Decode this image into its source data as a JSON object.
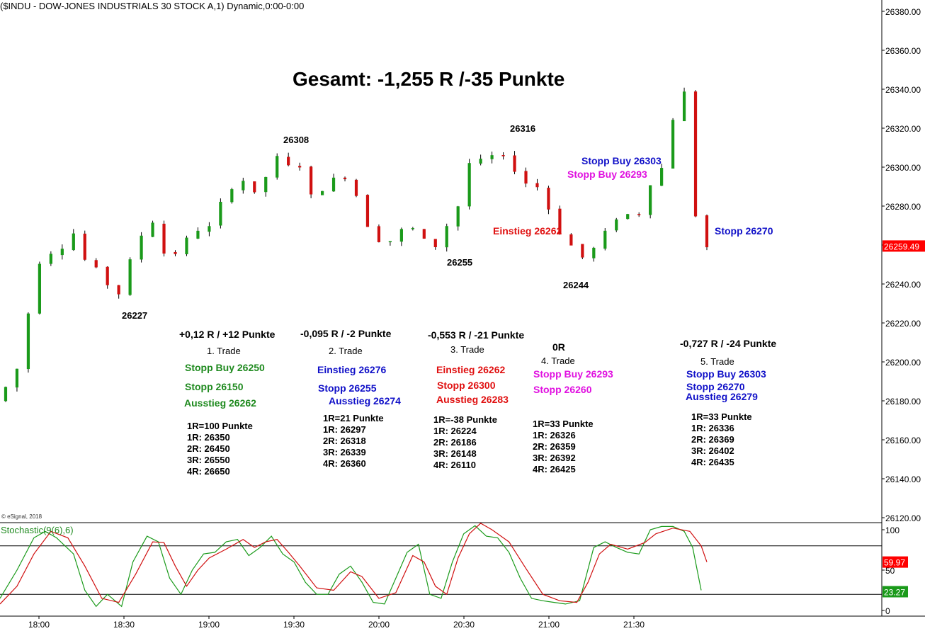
{
  "header": {
    "symbol": "($INDU - DOW-JONES INDUSTRIALS 30 STOCK A,1) Dynamic,0:00-0:00",
    "title": "Gesamt: -1,255 R /-35 Punkte",
    "copyright": "© eSignal, 2018"
  },
  "price_axis": {
    "ticks": [
      "26380.00",
      "26360.00",
      "26340.00",
      "26320.00",
      "26300.00",
      "26280.00",
      "26260.00",
      "26240.00",
      "26220.00",
      "26200.00",
      "26180.00",
      "26160.00",
      "26140.00",
      "26120.00"
    ],
    "last_price": "26259.49",
    "last_price_color": "#ff0000"
  },
  "stoch_axis": {
    "ticks": [
      "100",
      "50",
      "0"
    ],
    "label": "Stochastic(9(6),6)",
    "red_value": "59.97",
    "green_value": "23.27",
    "red_color": "#ff0000",
    "green_color": "#1a9a1a"
  },
  "time_axis": [
    "18:00",
    "18:30",
    "19:00",
    "19:30",
    "20:00",
    "20:30",
    "21:00",
    "21:30"
  ],
  "price_labels": {
    "p26227": "26227",
    "p26308": "26308",
    "p26316": "26316",
    "p26255": "26255",
    "p26244": "26244"
  },
  "chart_annotations": {
    "stopp_buy_26303": "Stopp Buy 26303",
    "stopp_buy_26293": "Stopp Buy 26293",
    "einstieg_26262": "Einstieg 26262",
    "stopp_26270": "Stopp 26270"
  },
  "trades": [
    {
      "result": "+0,12 R / +12 Punkte",
      "name": "1. Trade",
      "lines": [
        "Stopp Buy 26250",
        "Stopp 26150",
        "Ausstieg 26262"
      ],
      "r_levels": [
        "1R=100 Punkte",
        "1R: 26350",
        "2R: 26450",
        "3R: 26550",
        "4R: 26650"
      ]
    },
    {
      "result": "-0,095 R / -2 Punkte",
      "name": "2. Trade",
      "lines": [
        "Einstieg 26276",
        "Stopp 26255",
        "Ausstieg 26274"
      ],
      "r_levels": [
        "1R=21 Punkte",
        "1R: 26297",
        "2R: 26318",
        "3R: 26339",
        "4R: 26360"
      ]
    },
    {
      "result": "-0,553 R / -21 Punkte",
      "name": "3. Trade",
      "lines": [
        "Einstieg 26262",
        "Stopp 26300",
        "Ausstieg 26283"
      ],
      "r_levels": [
        "1R=-38 Punkte",
        "1R: 26224",
        "2R: 26186",
        "3R: 26148",
        "4R: 26110"
      ]
    },
    {
      "result": "0R",
      "name": "4. Trade",
      "lines": [
        "Stopp Buy 26293",
        "Stopp 26260"
      ],
      "r_levels": [
        "1R=33 Punkte",
        "1R: 26326",
        "2R: 26359",
        "3R: 26392",
        "4R: 26425"
      ]
    },
    {
      "result": "-0,727 R / -24 Punkte",
      "name": "5. Trade",
      "lines": [
        "Stopp Buy 26303",
        "Stopp 26270",
        "Ausstieg 26279"
      ],
      "r_levels": [
        "1R=33 Punkte",
        "1R: 26336",
        "2R: 26369",
        "3R: 26402",
        "4R: 26435"
      ]
    }
  ],
  "chart_data": [
    {
      "type": "candlestick",
      "title": "Gesamt: -1,255 R /-35 Punkte",
      "x_time_ticks": [
        "18:00",
        "18:30",
        "19:00",
        "19:30",
        "20:00",
        "20:30",
        "21:00",
        "21:30"
      ],
      "ylim": [
        26120,
        26380
      ],
      "up_color": "#1a9a1a",
      "down_color": "#d01010",
      "close_path": [
        [
          0,
          26180
        ],
        [
          7,
          26192
        ],
        [
          10,
          26205
        ],
        [
          13,
          26235
        ],
        [
          17,
          26257
        ],
        [
          22,
          26256
        ],
        [
          28,
          26266
        ],
        [
          33,
          26249
        ],
        [
          38,
          26246
        ],
        [
          43,
          26231
        ],
        [
          47,
          26248
        ],
        [
          52,
          26265
        ],
        [
          57,
          26274
        ],
        [
          61,
          26250
        ],
        [
          66,
          26260
        ],
        [
          72,
          26268
        ],
        [
          77,
          26269
        ],
        [
          81,
          26285
        ],
        [
          87,
          26295
        ],
        [
          93,
          26284
        ],
        [
          99,
          26306
        ],
        [
          103,
          26300
        ],
        [
          108,
          26301
        ],
        [
          112,
          26285
        ],
        [
          117,
          26290
        ],
        [
          123,
          26297
        ],
        [
          127,
          26290
        ],
        [
          131,
          26273
        ],
        [
          135,
          26263
        ],
        [
          141,
          26262
        ],
        [
          146,
          26271
        ],
        [
          151,
          26264
        ],
        [
          155,
          26257
        ],
        [
          160,
          26270
        ],
        [
          164,
          26280
        ],
        [
          168,
          26302
        ],
        [
          173,
          26303
        ],
        [
          178,
          26307
        ],
        [
          182,
          26302
        ],
        [
          186,
          26296
        ],
        [
          189,
          26290
        ],
        [
          193,
          26290
        ],
        [
          197,
          26275
        ],
        [
          201,
          26264
        ],
        [
          206,
          26257
        ],
        [
          209,
          26252
        ],
        [
          214,
          26262
        ],
        [
          218,
          26270
        ],
        [
          222,
          26278
        ],
        [
          227,
          26272
        ],
        [
          231,
          26290
        ],
        [
          235,
          26298
        ],
        [
          238,
          26302
        ],
        [
          240,
          26325
        ],
        [
          244,
          26338
        ],
        [
          245,
          26340
        ],
        [
          246,
          26300
        ],
        [
          247,
          26285
        ],
        [
          249,
          26266
        ],
        [
          250,
          26259
        ]
      ]
    },
    {
      "type": "line",
      "title": "Stochastic(9(6),6)",
      "ylim": [
        0,
        100
      ],
      "series": [
        {
          "color": "#1a9a1a",
          "points": [
            [
              0,
              15
            ],
            [
              6,
              50
            ],
            [
              12,
              90
            ],
            [
              16,
              98
            ],
            [
              20,
              90
            ],
            [
              26,
              70
            ],
            [
              30,
              25
            ],
            [
              34,
              5
            ],
            [
              38,
              20
            ],
            [
              43,
              5
            ],
            [
              47,
              60
            ],
            [
              52,
              92
            ],
            [
              56,
              85
            ],
            [
              60,
              40
            ],
            [
              64,
              20
            ],
            [
              68,
              50
            ],
            [
              72,
              70
            ],
            [
              76,
              72
            ],
            [
              80,
              85
            ],
            [
              84,
              88
            ],
            [
              88,
              68
            ],
            [
              92,
              78
            ],
            [
              96,
              92
            ],
            [
              100,
              70
            ],
            [
              104,
              60
            ],
            [
              108,
              35
            ],
            [
              112,
              20
            ],
            [
              116,
              20
            ],
            [
              120,
              45
            ],
            [
              124,
              55
            ],
            [
              128,
              35
            ],
            [
              132,
              10
            ],
            [
              136,
              8
            ],
            [
              140,
              40
            ],
            [
              144,
              72
            ],
            [
              148,
              82
            ],
            [
              152,
              20
            ],
            [
              156,
              15
            ],
            [
              160,
              60
            ],
            [
              164,
              95
            ],
            [
              168,
              105
            ],
            [
              172,
              92
            ],
            [
              176,
              90
            ],
            [
              180,
              72
            ],
            [
              184,
              40
            ],
            [
              188,
              15
            ],
            [
              192,
              12
            ],
            [
              196,
              10
            ],
            [
              200,
              8
            ],
            [
              205,
              12
            ],
            [
              210,
              78
            ],
            [
              214,
              85
            ],
            [
              218,
              78
            ],
            [
              222,
              72
            ],
            [
              226,
              70
            ],
            [
              230,
              100
            ],
            [
              234,
              104
            ],
            [
              238,
              104
            ],
            [
              242,
              98
            ],
            [
              245,
              78
            ],
            [
              248,
              25
            ]
          ]
        },
        {
          "color": "#d01010",
          "points": [
            [
              0,
              8
            ],
            [
              6,
              30
            ],
            [
              12,
              70
            ],
            [
              18,
              98
            ],
            [
              24,
              90
            ],
            [
              30,
              55
            ],
            [
              36,
              15
            ],
            [
              42,
              10
            ],
            [
              48,
              45
            ],
            [
              54,
              85
            ],
            [
              58,
              84
            ],
            [
              62,
              55
            ],
            [
              66,
              30
            ],
            [
              70,
              50
            ],
            [
              74,
              65
            ],
            [
              80,
              76
            ],
            [
              86,
              88
            ],
            [
              90,
              78
            ],
            [
              94,
              85
            ],
            [
              98,
              88
            ],
            [
              102,
              72
            ],
            [
              106,
              55
            ],
            [
              112,
              28
            ],
            [
              118,
              25
            ],
            [
              124,
              48
            ],
            [
              128,
              42
            ],
            [
              134,
              15
            ],
            [
              140,
              22
            ],
            [
              146,
              68
            ],
            [
              150,
              60
            ],
            [
              154,
              30
            ],
            [
              158,
              20
            ],
            [
              162,
              65
            ],
            [
              166,
              95
            ],
            [
              170,
              108
            ],
            [
              174,
              100
            ],
            [
              180,
              85
            ],
            [
              186,
              52
            ],
            [
              192,
              20
            ],
            [
              198,
              12
            ],
            [
              204,
              10
            ],
            [
              208,
              35
            ],
            [
              212,
              70
            ],
            [
              216,
              82
            ],
            [
              222,
              76
            ],
            [
              228,
              84
            ],
            [
              232,
              95
            ],
            [
              238,
              102
            ],
            [
              244,
              98
            ],
            [
              248,
              80
            ],
            [
              250,
              60
            ]
          ]
        }
      ],
      "bands": [
        80,
        20
      ]
    }
  ]
}
